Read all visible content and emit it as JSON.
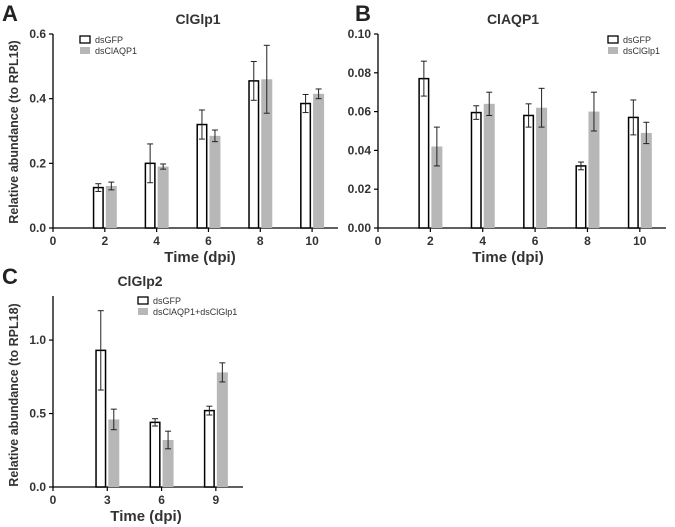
{
  "colors": {
    "open_bar": "#ffffff",
    "open_stroke": "#000000",
    "gray_bar": "#b7b7b7",
    "axis": "#000000",
    "text": "#333333"
  },
  "chart_data": [
    {
      "panel": "A",
      "type": "bar",
      "title": "ClGlp1",
      "xlabel": "Time (dpi)",
      "ylabel": "Relative abundance (to RPL18)",
      "categories": [
        "2",
        "4",
        "6",
        "8",
        "10"
      ],
      "x_ticks": [
        "0",
        "2",
        "4",
        "6",
        "8",
        "10"
      ],
      "y_ticks": [
        "0.0",
        "0.2",
        "0.4",
        "0.6"
      ],
      "ylim": [
        0,
        0.6
      ],
      "series": [
        {
          "name": "dsGFP",
          "style": "open",
          "values": [
            0.125,
            0.2,
            0.32,
            0.455,
            0.385
          ],
          "errors": [
            0.012,
            0.06,
            0.045,
            0.06,
            0.028
          ]
        },
        {
          "name": "dsClAQP1",
          "style": "gray",
          "values": [
            0.13,
            0.19,
            0.285,
            0.46,
            0.415
          ],
          "errors": [
            0.012,
            0.008,
            0.018,
            0.105,
            0.015
          ]
        }
      ]
    },
    {
      "panel": "B",
      "type": "bar",
      "title": "ClAQP1",
      "xlabel": "Time (dpi)",
      "ylabel": "",
      "categories": [
        "2",
        "4",
        "6",
        "8",
        "10"
      ],
      "x_ticks": [
        "0",
        "2",
        "4",
        "6",
        "8",
        "10"
      ],
      "y_ticks": [
        "0.00",
        "0.02",
        "0.04",
        "0.06",
        "0.08",
        "0.10"
      ],
      "ylim": [
        0,
        0.1
      ],
      "series": [
        {
          "name": "dsGFP",
          "style": "open",
          "values": [
            0.077,
            0.0595,
            0.058,
            0.032,
            0.057
          ],
          "errors": [
            0.009,
            0.0035,
            0.006,
            0.002,
            0.009
          ]
        },
        {
          "name": "dsClGlp1",
          "style": "gray",
          "values": [
            0.042,
            0.064,
            0.062,
            0.06,
            0.049
          ],
          "errors": [
            0.01,
            0.006,
            0.01,
            0.01,
            0.0055
          ]
        }
      ]
    },
    {
      "panel": "C",
      "type": "bar",
      "title": "ClGlp2",
      "xlabel": "Time (dpi)",
      "ylabel": "Relative abundance (to RPL18)",
      "categories": [
        "3",
        "6",
        "9"
      ],
      "x_ticks": [
        "0",
        "3",
        "6",
        "9"
      ],
      "y_ticks": [
        "0.0",
        "0.5",
        "1.0"
      ],
      "ylim": [
        0,
        1.3
      ],
      "series": [
        {
          "name": "dsGFP",
          "style": "open",
          "values": [
            0.93,
            0.44,
            0.52
          ],
          "errors": [
            0.27,
            0.025,
            0.03
          ]
        },
        {
          "name": "dsClAQP1+dsClGlp1",
          "style": "gray",
          "values": [
            0.46,
            0.32,
            0.78
          ],
          "errors": [
            0.07,
            0.06,
            0.065
          ]
        }
      ]
    }
  ]
}
